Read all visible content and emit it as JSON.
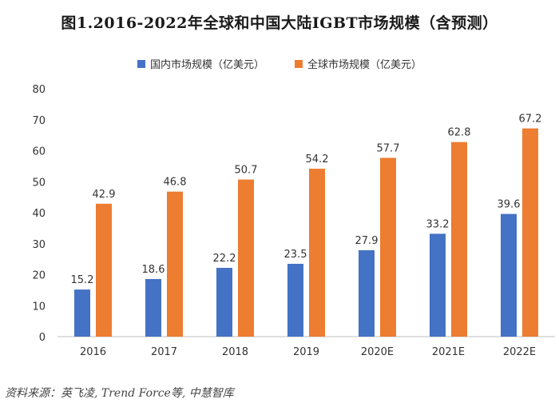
{
  "chart_data": {
    "type": "bar",
    "title": "图1.2016-2022年全球和中国大陆IGBT市场规模（含预测）",
    "categories": [
      "2016",
      "2017",
      "2018",
      "2019",
      "2020E",
      "2021E",
      "2022E"
    ],
    "series": [
      {
        "name": "国内市场规模（亿美元）",
        "color": "#4472c4",
        "values": [
          15.2,
          18.6,
          22.2,
          23.5,
          27.9,
          33.2,
          39.6
        ]
      },
      {
        "name": "全球市场规模（亿美元）",
        "color": "#ed7d31",
        "values": [
          42.9,
          46.8,
          50.7,
          54.2,
          57.7,
          62.8,
          67.2
        ]
      }
    ],
    "ylim": [
      0,
      80
    ],
    "yticks": [
      0,
      10,
      20,
      30,
      40,
      50,
      60,
      70,
      80
    ],
    "xlabel": "",
    "ylabel": "",
    "grid": false,
    "legend_position": "top-center"
  },
  "source": "资料来源：英飞凌, Trend Force等, 中慧智库"
}
